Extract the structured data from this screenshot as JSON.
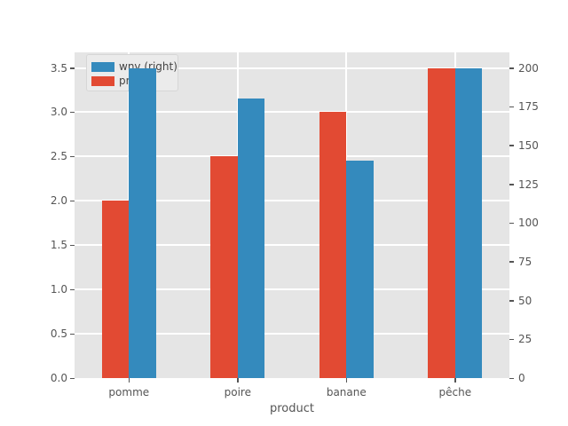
{
  "chart_data": {
    "type": "bar",
    "categories": [
      "pomme",
      "poire",
      "banane",
      "pêche"
    ],
    "series": [
      {
        "name": "wnv (right)",
        "axis": "right",
        "slot": "right",
        "color": "#348ABD",
        "values": [
          200,
          180,
          140,
          200
        ]
      },
      {
        "name": "prix",
        "axis": "left",
        "slot": "left",
        "color": "#E24A33",
        "values": [
          2.0,
          2.5,
          3.0,
          3.5
        ]
      }
    ],
    "xlabel": "product",
    "left_axis": {
      "min": 0,
      "max": 3.5,
      "tick_values": [
        0,
        0.5,
        1.0,
        1.5,
        2.0,
        2.5,
        3.0,
        3.5
      ],
      "tick_labels": [
        "0.0",
        "0.5",
        "1.0",
        "1.5",
        "2.0",
        "2.5",
        "3.0",
        "3.5"
      ]
    },
    "right_axis": {
      "min": 0,
      "max": 200,
      "tick_values": [
        0,
        25,
        50,
        75,
        100,
        125,
        150,
        175,
        200
      ],
      "tick_labels": [
        "0",
        "25",
        "50",
        "75",
        "100",
        "125",
        "150",
        "175",
        "200"
      ]
    },
    "legend": {
      "entries": [
        "wnv (right)",
        "prix"
      ],
      "position": "upper-left"
    },
    "grid": true,
    "style": {
      "axes_bg": "#E5E5E5",
      "grid_color": "#FFFFFF",
      "tick_color": "#555555",
      "label_color": "#555555",
      "legend_bg": "#EBEBEB",
      "legend_border": "#D6D6D6"
    }
  }
}
